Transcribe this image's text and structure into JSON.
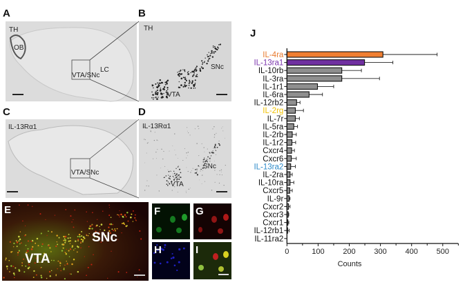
{
  "panels": {
    "A": {
      "letter": "A",
      "stain": "TH",
      "regions": [
        "OB",
        "LC",
        "VTA/SNc"
      ]
    },
    "B": {
      "letter": "B",
      "stain": "TH",
      "regions": [
        "SNc",
        "VTA"
      ]
    },
    "C": {
      "letter": "C",
      "stain": "IL-13Rα1",
      "regions": [
        "VTA/SNc"
      ]
    },
    "D": {
      "letter": "D",
      "stain": "IL-13Rα1",
      "regions": [
        "SNc",
        "VTA"
      ]
    },
    "E": {
      "letter": "E",
      "regions": [
        "VTA",
        "SNc"
      ]
    },
    "F": {
      "letter": "F"
    },
    "G": {
      "letter": "G"
    },
    "H": {
      "letter": "H"
    },
    "I": {
      "letter": "I"
    }
  },
  "chart_data": {
    "type": "bar",
    "orientation": "horizontal",
    "panel_letter": "J",
    "xlabel": "Counts",
    "ylabel": "",
    "xlim": [
      0,
      550
    ],
    "xticks": [
      0,
      100,
      200,
      300,
      400,
      500
    ],
    "grid": false,
    "categories": [
      "IL-4ra",
      "IL-13ra1",
      "IL-10rb",
      "IL-3ra",
      "IL-1r1",
      "IL-6ra",
      "IL-12rb2",
      "IL-2rg",
      "IL-7r",
      "IL-5ra",
      "IL-2rb",
      "IL-1r2",
      "Cxcr4",
      "Cxcr6",
      "IL-13ra2",
      "IL-2ra",
      "IL-10ra",
      "Cxcr5",
      "IL-9r",
      "Cxcr2",
      "Cxcr3",
      "Cxcr1",
      "IL-12rb1",
      "IL-11ra2"
    ],
    "values": [
      308,
      249,
      176,
      176,
      98,
      71,
      31,
      27,
      27,
      22,
      17,
      16,
      15,
      14,
      12,
      10,
      10,
      9,
      7,
      5,
      4,
      3,
      1.5,
      0
    ],
    "error_upper": [
      482,
      340,
      239,
      297,
      150,
      114,
      42,
      53,
      40,
      34,
      30,
      28,
      24,
      30,
      27,
      17,
      22,
      17,
      10,
      10,
      6,
      6,
      7,
      0
    ],
    "bar_colors": {
      "IL-4ra": "#f07f32",
      "IL-13ra1": "#7030a0",
      "default": "#8f8f8f"
    },
    "label_colors": {
      "IL-4ra": "#e8792c",
      "IL-13ra1": "#7b35ad",
      "IL-2rg": "#f2c200",
      "IL-13ra2": "#2e8bc9",
      "default": "#111111"
    }
  }
}
